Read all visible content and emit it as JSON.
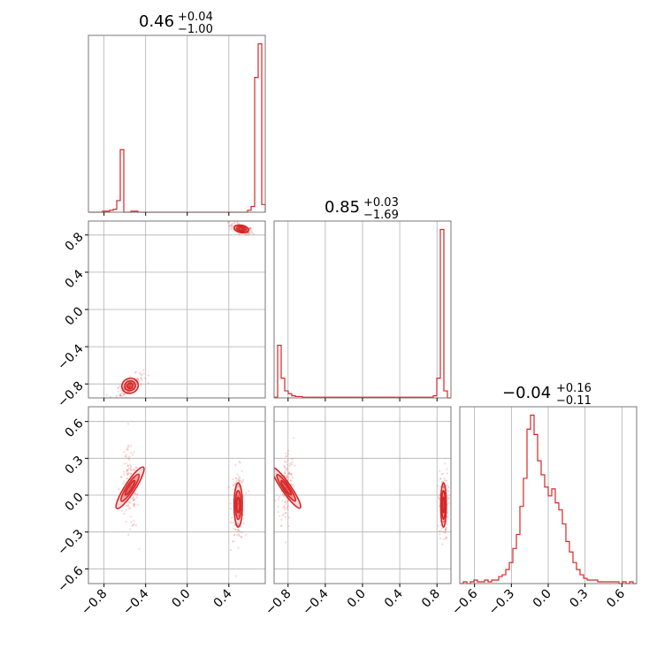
{
  "chart_data": {
    "type": "corner",
    "color": "#d62728",
    "parameters": [
      {
        "title_value": "0.46",
        "err_plus": "+0.04",
        "err_minus": "−1.00",
        "range": [
          -0.95,
          0.75
        ]
      },
      {
        "title_value": "0.85",
        "err_plus": "+0.03",
        "err_minus": "−1.69",
        "range": [
          -0.95,
          0.95
        ]
      },
      {
        "title_value": "−0.04",
        "err_plus": "+0.16",
        "err_minus": "−0.11",
        "range": [
          -0.72,
          0.72
        ]
      }
    ],
    "ticks": [
      {
        "values": [
          -0.8,
          -0.4,
          0.0,
          0.4
        ],
        "labels": [
          "−0.8",
          "−0.4",
          "0.0",
          "0.4"
        ]
      },
      {
        "values": [
          -0.8,
          -0.4,
          0.0,
          0.4,
          0.8
        ],
        "labels": [
          "−0.8",
          "−0.4",
          "0.0",
          "0.4",
          "0.8"
        ]
      },
      {
        "values": [
          -0.6,
          -0.3,
          0.0,
          0.3,
          0.6
        ],
        "labels": [
          "−0.6",
          "−0.3",
          "0.0",
          "0.3",
          "0.6"
        ]
      }
    ],
    "histograms": [
      {
        "bin_edges_range": [
          -0.95,
          0.75
        ],
        "bins": 50,
        "counts": [
          0,
          0,
          0,
          0,
          1,
          1,
          2,
          3,
          12,
          65,
          0,
          0,
          1,
          1,
          0,
          0,
          0,
          0,
          0,
          0,
          0,
          0,
          0,
          0,
          0,
          0,
          0,
          0,
          0,
          0,
          0,
          0,
          0,
          0,
          0,
          0,
          0,
          0,
          0,
          0,
          0,
          0,
          0,
          0,
          0,
          2,
          6,
          140,
          175,
          8
        ]
      },
      {
        "bin_edges_range": [
          -0.95,
          0.95
        ],
        "bins": 50,
        "counts": [
          1,
          75,
          28,
          10,
          6,
          3,
          2,
          2,
          1,
          1,
          1,
          1,
          1,
          1,
          1,
          1,
          1,
          1,
          1,
          1,
          1,
          1,
          1,
          1,
          1,
          1,
          1,
          1,
          1,
          1,
          1,
          1,
          1,
          1,
          1,
          1,
          1,
          1,
          1,
          1,
          1,
          1,
          1,
          1,
          1,
          3,
          28,
          240,
          10,
          0
        ]
      },
      {
        "bin_edges_range": [
          -0.72,
          0.72
        ],
        "bins": 50,
        "counts": [
          0,
          1,
          0,
          1,
          2,
          1,
          1,
          2,
          1,
          2,
          2,
          4,
          5,
          8,
          12,
          20,
          28,
          44,
          60,
          88,
          96,
          85,
          70,
          62,
          55,
          50,
          54,
          46,
          42,
          34,
          24,
          18,
          12,
          8,
          5,
          3,
          2,
          2,
          2,
          1,
          1,
          1,
          1,
          1,
          1,
          0,
          1,
          0,
          1,
          0
        ]
      }
    ],
    "pair_clusters": [
      {
        "x_param": 0,
        "y_param": 1,
        "clusters": [
          {
            "cx": 0.52,
            "cy": 0.865,
            "sx": 0.035,
            "sy": 0.02,
            "corr": -0.6
          },
          {
            "cx": -0.55,
            "cy": -0.82,
            "sx": 0.04,
            "sy": 0.04,
            "corr": 0.7
          }
        ]
      },
      {
        "x_param": 0,
        "y_param": 2,
        "clusters": [
          {
            "cx": -0.55,
            "cy": 0.06,
            "sx": 0.025,
            "sy": 0.1,
            "corr": -0.3
          },
          {
            "cx": 0.49,
            "cy": -0.08,
            "sx": 0.02,
            "sy": 0.09,
            "corr": 0.0
          }
        ]
      },
      {
        "x_param": 1,
        "y_param": 2,
        "clusters": [
          {
            "cx": -0.82,
            "cy": 0.06,
            "sx": 0.025,
            "sy": 0.1,
            "corr": 0.3
          },
          {
            "cx": 0.87,
            "cy": -0.08,
            "sx": 0.015,
            "sy": 0.09,
            "corr": 0.0
          }
        ]
      }
    ]
  }
}
